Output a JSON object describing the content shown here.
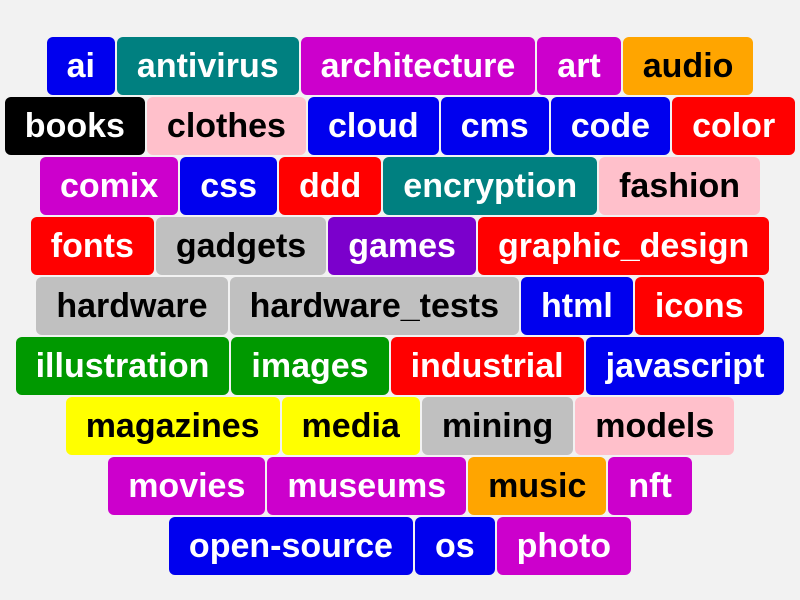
{
  "tags": [
    {
      "label": "ai",
      "bg": "#0000ee",
      "fg": "#ffffff"
    },
    {
      "label": "antivirus",
      "bg": "#008080",
      "fg": "#ffffff"
    },
    {
      "label": "architecture",
      "bg": "#cc00cc",
      "fg": "#ffffff"
    },
    {
      "label": "art",
      "bg": "#cc00cc",
      "fg": "#ffffff"
    },
    {
      "label": "audio",
      "bg": "#ffa500",
      "fg": "#000000"
    },
    {
      "label": "books",
      "bg": "#000000",
      "fg": "#ffffff"
    },
    {
      "label": "clothes",
      "bg": "#ffc0cb",
      "fg": "#000000"
    },
    {
      "label": "cloud",
      "bg": "#0000ee",
      "fg": "#ffffff"
    },
    {
      "label": "cms",
      "bg": "#0000ee",
      "fg": "#ffffff"
    },
    {
      "label": "code",
      "bg": "#0000ee",
      "fg": "#ffffff"
    },
    {
      "label": "color",
      "bg": "#ff0000",
      "fg": "#ffffff"
    },
    {
      "label": "comix",
      "bg": "#cc00cc",
      "fg": "#ffffff"
    },
    {
      "label": "css",
      "bg": "#0000ee",
      "fg": "#ffffff"
    },
    {
      "label": "ddd",
      "bg": "#ff0000",
      "fg": "#ffffff"
    },
    {
      "label": "encryption",
      "bg": "#008080",
      "fg": "#ffffff"
    },
    {
      "label": "fashion",
      "bg": "#ffc0cb",
      "fg": "#000000"
    },
    {
      "label": "fonts",
      "bg": "#ff0000",
      "fg": "#ffffff"
    },
    {
      "label": "gadgets",
      "bg": "#c0c0c0",
      "fg": "#000000"
    },
    {
      "label": "games",
      "bg": "#7b00cc",
      "fg": "#ffffff"
    },
    {
      "label": "graphic_design",
      "bg": "#ff0000",
      "fg": "#ffffff"
    },
    {
      "label": "hardware",
      "bg": "#c0c0c0",
      "fg": "#000000"
    },
    {
      "label": "hardware_tests",
      "bg": "#c0c0c0",
      "fg": "#000000"
    },
    {
      "label": "html",
      "bg": "#0000ee",
      "fg": "#ffffff"
    },
    {
      "label": "icons",
      "bg": "#ff0000",
      "fg": "#ffffff"
    },
    {
      "label": "illustration",
      "bg": "#009900",
      "fg": "#ffffff"
    },
    {
      "label": "images",
      "bg": "#009900",
      "fg": "#ffffff"
    },
    {
      "label": "industrial",
      "bg": "#ff0000",
      "fg": "#ffffff"
    },
    {
      "label": "javascript",
      "bg": "#0000ee",
      "fg": "#ffffff"
    },
    {
      "label": "magazines",
      "bg": "#ffff00",
      "fg": "#000000"
    },
    {
      "label": "media",
      "bg": "#ffff00",
      "fg": "#000000"
    },
    {
      "label": "mining",
      "bg": "#c0c0c0",
      "fg": "#000000"
    },
    {
      "label": "models",
      "bg": "#ffc0cb",
      "fg": "#000000"
    },
    {
      "label": "movies",
      "bg": "#cc00cc",
      "fg": "#ffffff"
    },
    {
      "label": "museums",
      "bg": "#cc00cc",
      "fg": "#ffffff"
    },
    {
      "label": "music",
      "bg": "#ffa500",
      "fg": "#000000"
    },
    {
      "label": "nft",
      "bg": "#cc00cc",
      "fg": "#ffffff"
    },
    {
      "label": "open-source",
      "bg": "#0000ee",
      "fg": "#ffffff"
    },
    {
      "label": "os",
      "bg": "#0000ee",
      "fg": "#ffffff"
    },
    {
      "label": "photo",
      "bg": "#cc00cc",
      "fg": "#ffffff"
    }
  ]
}
